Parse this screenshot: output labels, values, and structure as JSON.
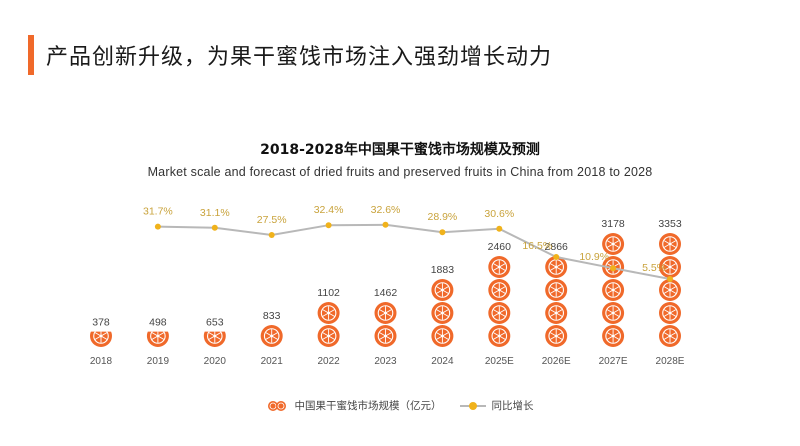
{
  "page": {
    "title": "产品创新升级，为果干蜜饯市场注入强劲增长动力"
  },
  "colors": {
    "accent": "#f0692a",
    "fruit": "#f0692a",
    "line": "#b8b8b8",
    "marker": "#f0b21b",
    "growth_label": "#c9a33c"
  },
  "chart_data": {
    "type": "bar",
    "title": "2018-2028年中国果干蜜饯市场规模及预测",
    "subtitle": "Market scale and forecast of dried fruits and preserved fruits in China from 2018 to 2028",
    "categories": [
      "2018",
      "2019",
      "2020",
      "2021",
      "2022",
      "2023",
      "2024",
      "2025E",
      "2026E",
      "2027E",
      "2028E"
    ],
    "series": [
      {
        "name": "中国果干蜜饯市场规模（亿元）",
        "type": "bar",
        "unit": "亿元",
        "values": [
          378,
          498,
          653,
          833,
          1102,
          1462,
          1883,
          2460,
          2866,
          3178,
          3353
        ]
      },
      {
        "name": "同比增长",
        "type": "line",
        "unit": "%",
        "values": [
          null,
          31.7,
          31.1,
          27.5,
          32.4,
          32.6,
          28.9,
          30.6,
          16.5,
          10.9,
          5.5
        ],
        "labels": [
          "",
          "31.7%",
          "31.1%",
          "27.5%",
          "32.4%",
          "32.6%",
          "28.9%",
          "30.6%",
          "16.5%",
          "10.9%",
          "5.5%"
        ]
      }
    ],
    "value_labels": [
      "378",
      "498",
      "653",
      "833",
      "1102",
      "1462",
      "1883",
      "2460",
      "2866",
      "3178",
      "3353"
    ],
    "legend": [
      "中国果干蜜饯市场规模（亿元）",
      "同比增长"
    ],
    "legend_position": "bottom-center",
    "grid": false
  }
}
